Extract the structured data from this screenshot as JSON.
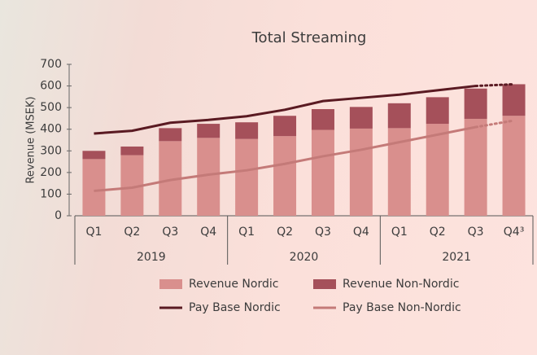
{
  "chart_data": {
    "type": "bar-line",
    "title": "Total Streaming",
    "y_label": "Revenue (MSEK)",
    "categories": [
      "Q1",
      "Q2",
      "Q3",
      "Q4",
      "Q1",
      "Q2",
      "Q3",
      "Q4",
      "Q1",
      "Q2",
      "Q3",
      "Q4³"
    ],
    "groups": [
      {
        "label": "2019",
        "count": 4
      },
      {
        "label": "2020",
        "count": 4
      },
      {
        "label": "2021",
        "count": 4
      }
    ],
    "ylim": [
      0,
      700
    ],
    "yticks": [
      0,
      100,
      200,
      300,
      400,
      500,
      600,
      700
    ],
    "dashed_from": 10,
    "series": [
      {
        "name": "Revenue Nordic",
        "kind": "bar",
        "color": "#d98f8d",
        "values": [
          262,
          280,
          345,
          360,
          355,
          368,
          397,
          403,
          405,
          425,
          448,
          462
        ]
      },
      {
        "name": "Revenue Non-Nordic",
        "kind": "bar",
        "color": "#a5505a",
        "values": [
          38,
          40,
          60,
          65,
          77,
          94,
          96,
          100,
          115,
          123,
          140,
          146
        ]
      },
      {
        "name": "Pay Base Nordic",
        "kind": "line",
        "color": "#5a1a22",
        "values": [
          380,
          393,
          430,
          443,
          460,
          490,
          530,
          545,
          560,
          580,
          600,
          608
        ]
      },
      {
        "name": "Pay Base Non-Nordic",
        "kind": "line",
        "color": "#c47a78",
        "values": [
          115,
          130,
          165,
          190,
          210,
          240,
          275,
          305,
          340,
          375,
          410,
          440
        ]
      }
    ]
  }
}
